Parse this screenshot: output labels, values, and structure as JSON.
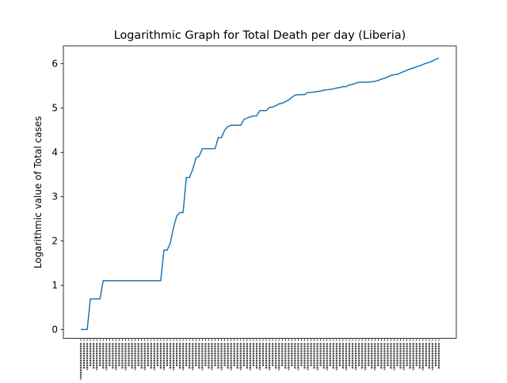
{
  "chart_data": {
    "type": "line",
    "title": "Logarithmic Graph for Total Death per day (Liberia)",
    "xlabel": "",
    "ylabel": "Logarithmic value of Total cases",
    "ylim": [
      -0.2,
      6.4
    ],
    "yticks": [
      0,
      1,
      2,
      3,
      4,
      5,
      6
    ],
    "grid": false,
    "legend": "none",
    "line_color": "#1f77b4",
    "xtick_labels_note": "dense rotated date labels (illegible)",
    "series": [
      {
        "values": [
          0,
          0,
          0,
          0.69,
          0.69,
          0.69,
          0.69,
          1.1,
          1.1,
          1.1,
          1.1,
          1.1,
          1.1,
          1.1,
          1.1,
          1.1,
          1.1,
          1.1,
          1.1,
          1.1,
          1.1,
          1.1,
          1.1,
          1.1,
          1.1,
          1.1,
          1.79,
          1.79,
          1.95,
          2.3,
          2.56,
          2.64,
          2.64,
          3.43,
          3.43,
          3.61,
          3.87,
          3.91,
          4.08,
          4.08,
          4.08,
          4.08,
          4.08,
          4.33,
          4.33,
          4.5,
          4.58,
          4.61,
          4.61,
          4.61,
          4.61,
          4.74,
          4.77,
          4.8,
          4.82,
          4.82,
          4.94,
          4.94,
          4.94,
          5.01,
          5.02,
          5.05,
          5.09,
          5.11,
          5.14,
          5.18,
          5.24,
          5.29,
          5.3,
          5.3,
          5.3,
          5.35,
          5.35,
          5.36,
          5.37,
          5.38,
          5.4,
          5.41,
          5.42,
          5.43,
          5.45,
          5.46,
          5.48,
          5.48,
          5.52,
          5.53,
          5.56,
          5.58,
          5.58,
          5.58,
          5.58,
          5.59,
          5.6,
          5.62,
          5.65,
          5.67,
          5.7,
          5.73,
          5.75,
          5.76,
          5.79,
          5.82,
          5.85,
          5.88,
          5.9,
          5.93,
          5.95,
          5.98,
          6.01,
          6.03,
          6.06,
          6.1,
          6.12
        ]
      }
    ]
  }
}
